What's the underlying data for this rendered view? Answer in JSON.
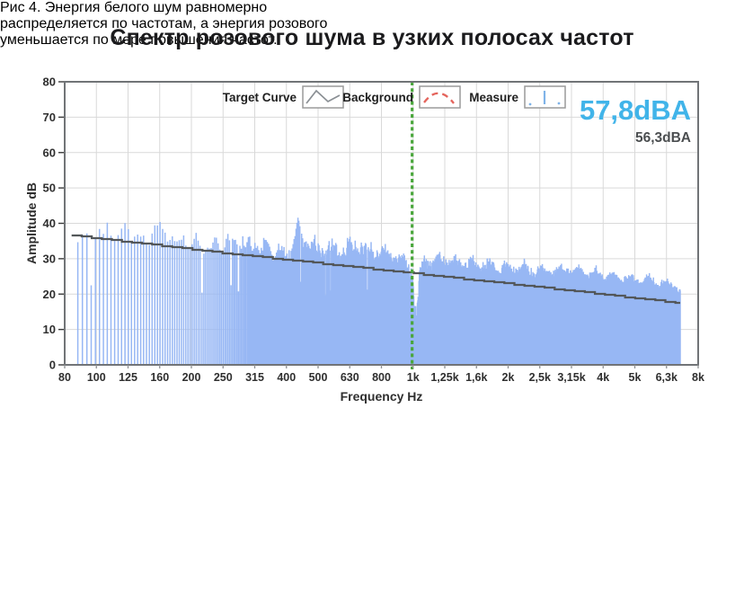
{
  "title": "Спектр розового шума в узких полосах частот",
  "caption": {
    "lines": {
      "0": "Рис 4. Энергия белого шум равномерно",
      "1": "распределяется по частотам, а энергия розового",
      "2": "уменьшается по мере повышения частот."
    }
  },
  "chart_data": {
    "type": "bar",
    "title": "",
    "xlabel": "Frequency Hz",
    "ylabel": "Amplitude dB",
    "x_scale": "log",
    "xlim_hz": [
      80,
      8000
    ],
    "ylim": [
      0,
      80
    ],
    "yticks": [
      80,
      70,
      60,
      50,
      40,
      30,
      20,
      10,
      0
    ],
    "xticklabels": [
      "80",
      "100",
      "125",
      "160",
      "200",
      "250",
      "315",
      "400",
      "500",
      "630",
      "800",
      "1k",
      "1,25k",
      "1,6k",
      "2k",
      "2,5k",
      "3,15k",
      "4k",
      "5k",
      "6,3k",
      "8k"
    ],
    "grid": true,
    "cursor_hz": 1000,
    "legend": [
      {
        "label": "Target Curve",
        "icon": "target-curve-icon"
      },
      {
        "label": "Background",
        "icon": "background-icon"
      },
      {
        "label": "Measure",
        "icon": "measure-icon"
      }
    ],
    "readouts": {
      "measured": "57,8dBA",
      "background": "56,3dBA"
    },
    "spectrum": {
      "f_start_hz": 88,
      "f_end_hz": 7020,
      "bin_step_hz": 3,
      "noise_seed": 987654321,
      "envelope_db_by_logfrac": [
        [
          0.013,
          35.2
        ],
        [
          0.02,
          36.0
        ],
        [
          0.03,
          35.6
        ],
        [
          0.045,
          36.4
        ],
        [
          0.06,
          37.5
        ],
        [
          0.068,
          40.3
        ],
        [
          0.075,
          37.0
        ],
        [
          0.085,
          35.8
        ],
        [
          0.095,
          38.6
        ],
        [
          0.105,
          35.2
        ],
        [
          0.115,
          36.8
        ],
        [
          0.13,
          34.6
        ],
        [
          0.14,
          36.2
        ],
        [
          0.15,
          41.0
        ],
        [
          0.16,
          36.6
        ],
        [
          0.172,
          34.0
        ],
        [
          0.185,
          36.0
        ],
        [
          0.197,
          33.4
        ],
        [
          0.21,
          35.6
        ],
        [
          0.222,
          30.8
        ],
        [
          0.235,
          35.4
        ],
        [
          0.25,
          33.8
        ],
        [
          0.263,
          36.4
        ],
        [
          0.277,
          32.8
        ],
        [
          0.29,
          35.8
        ],
        [
          0.303,
          32.4
        ],
        [
          0.315,
          34.6
        ],
        [
          0.33,
          30.4
        ],
        [
          0.342,
          33.6
        ],
        [
          0.355,
          29.6
        ],
        [
          0.368,
          41.0
        ],
        [
          0.38,
          33.0
        ],
        [
          0.394,
          35.6
        ],
        [
          0.408,
          31.0
        ],
        [
          0.422,
          34.4
        ],
        [
          0.436,
          29.8
        ],
        [
          0.45,
          35.0
        ],
        [
          0.465,
          31.4
        ],
        [
          0.478,
          34.4
        ],
        [
          0.492,
          29.6
        ],
        [
          0.505,
          32.4
        ],
        [
          0.52,
          28.6
        ],
        [
          0.533,
          30.6
        ],
        [
          0.543,
          27.0
        ],
        [
          0.5485,
          25.0
        ],
        [
          0.552,
          17.0
        ],
        [
          0.5555,
          13.5
        ],
        [
          0.56,
          25.0
        ],
        [
          0.567,
          30.0
        ],
        [
          0.578,
          27.0
        ],
        [
          0.59,
          31.0
        ],
        [
          0.603,
          27.4
        ],
        [
          0.617,
          30.0
        ],
        [
          0.63,
          26.6
        ],
        [
          0.643,
          29.4
        ],
        [
          0.657,
          26.0
        ],
        [
          0.67,
          28.6
        ],
        [
          0.684,
          25.4
        ],
        [
          0.698,
          28.0
        ],
        [
          0.712,
          24.6
        ],
        [
          0.726,
          27.6
        ],
        [
          0.74,
          24.2
        ],
        [
          0.754,
          27.2
        ],
        [
          0.768,
          23.8
        ],
        [
          0.782,
          26.8
        ],
        [
          0.796,
          24.4
        ],
        [
          0.81,
          26.4
        ],
        [
          0.824,
          23.4
        ],
        [
          0.838,
          25.6
        ],
        [
          0.852,
          22.6
        ],
        [
          0.866,
          24.8
        ],
        [
          0.88,
          22.0
        ],
        [
          0.894,
          24.0
        ],
        [
          0.908,
          21.2
        ],
        [
          0.922,
          23.6
        ],
        [
          0.936,
          20.6
        ],
        [
          0.95,
          22.4
        ],
        [
          0.96,
          20.2
        ],
        [
          0.9716,
          19.6
        ]
      ]
    },
    "target_curve_db_by_logfrac": [
      [
        0.013,
        36.5
      ],
      [
        0.25,
        31.6
      ],
      [
        0.5,
        26.8
      ],
      [
        0.75,
        21.9
      ],
      [
        0.9716,
        17.4
      ]
    ],
    "colors": {
      "bar": "#97b7f4",
      "target_curve": "#53575a",
      "cursor": "#4aa63c",
      "grid": "#d9d9d9",
      "border": "#717477",
      "tick_text": "#2f2f2f",
      "legend_text": "#1f1f1f",
      "readout_primary": "#41b4e9",
      "readout_secondary": "#4b4e50",
      "legend_target_icon": "#8a8f94",
      "legend_background_icon": "#e4645c",
      "legend_measure_icon": "#7fb3e8"
    }
  }
}
